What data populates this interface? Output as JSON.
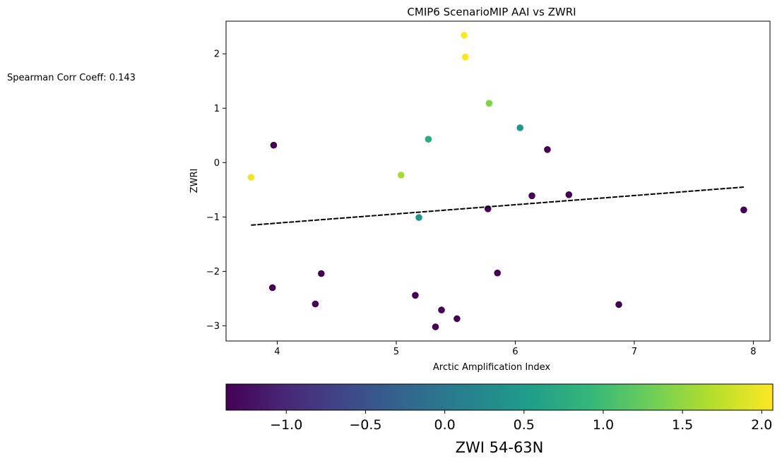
{
  "chart_data": {
    "type": "scatter",
    "title": "CMIP6 ScenarioMIP AAI vs ZWRI",
    "xlabel": "Arctic Amplification Index",
    "ylabel": "ZWRI",
    "xlim": [
      3.57,
      8.14
    ],
    "ylim": [
      -3.28,
      2.6
    ],
    "xticks": [
      4,
      5,
      6,
      7,
      8
    ],
    "yticks": [
      -3,
      -2,
      -1,
      0,
      1,
      2
    ],
    "xtick_labels": [
      "4",
      "5",
      "6",
      "7",
      "8"
    ],
    "ytick_labels": [
      "−3",
      "−2",
      "−1",
      "0",
      "1",
      "2"
    ],
    "grid": false,
    "annotation": "Spearman Corr Coeff: 0.143",
    "colormap": "viridis",
    "colorbar": {
      "label": "ZWI 54-63N",
      "range": [
        -1.38,
        2.07
      ],
      "ticks": [
        -1.0,
        -0.5,
        0.0,
        0.5,
        1.0,
        1.5,
        2.0
      ],
      "tick_labels": [
        "−1.0",
        "−0.5",
        "0.0",
        "0.5",
        "1.0",
        "1.5",
        "2.0"
      ],
      "orientation": "horizontal"
    },
    "points": [
      {
        "x": 3.78,
        "y": -0.27,
        "c": 2.0
      },
      {
        "x": 3.97,
        "y": 0.32,
        "c": -1.38
      },
      {
        "x": 3.96,
        "y": -2.3,
        "c": -1.38
      },
      {
        "x": 4.32,
        "y": -2.6,
        "c": -1.38
      },
      {
        "x": 4.37,
        "y": -2.04,
        "c": -1.38
      },
      {
        "x": 5.04,
        "y": -0.23,
        "c": 1.6
      },
      {
        "x": 5.16,
        "y": -2.44,
        "c": -1.38
      },
      {
        "x": 5.19,
        "y": -1.01,
        "c": 0.4
      },
      {
        "x": 5.27,
        "y": 0.43,
        "c": 0.75
      },
      {
        "x": 5.33,
        "y": -3.02,
        "c": -1.38
      },
      {
        "x": 5.38,
        "y": -2.71,
        "c": -1.38
      },
      {
        "x": 5.51,
        "y": -2.87,
        "c": -1.38
      },
      {
        "x": 5.57,
        "y": 2.34,
        "c": 2.07
      },
      {
        "x": 5.58,
        "y": 1.94,
        "c": 2.05
      },
      {
        "x": 5.77,
        "y": -0.85,
        "c": -1.38
      },
      {
        "x": 5.78,
        "y": 1.09,
        "c": 1.4
      },
      {
        "x": 5.85,
        "y": -2.03,
        "c": -1.38
      },
      {
        "x": 6.04,
        "y": 0.64,
        "c": 0.45
      },
      {
        "x": 6.14,
        "y": -0.61,
        "c": -1.38
      },
      {
        "x": 6.27,
        "y": 0.24,
        "c": -1.38
      },
      {
        "x": 6.45,
        "y": -0.59,
        "c": -1.38
      },
      {
        "x": 6.87,
        "y": -2.61,
        "c": -1.38
      },
      {
        "x": 7.92,
        "y": -0.87,
        "c": -1.38
      }
    ],
    "trendline": {
      "x": [
        3.78,
        7.92
      ],
      "y": [
        -1.15,
        -0.45
      ],
      "style": "dashed",
      "color": "#000000"
    }
  }
}
